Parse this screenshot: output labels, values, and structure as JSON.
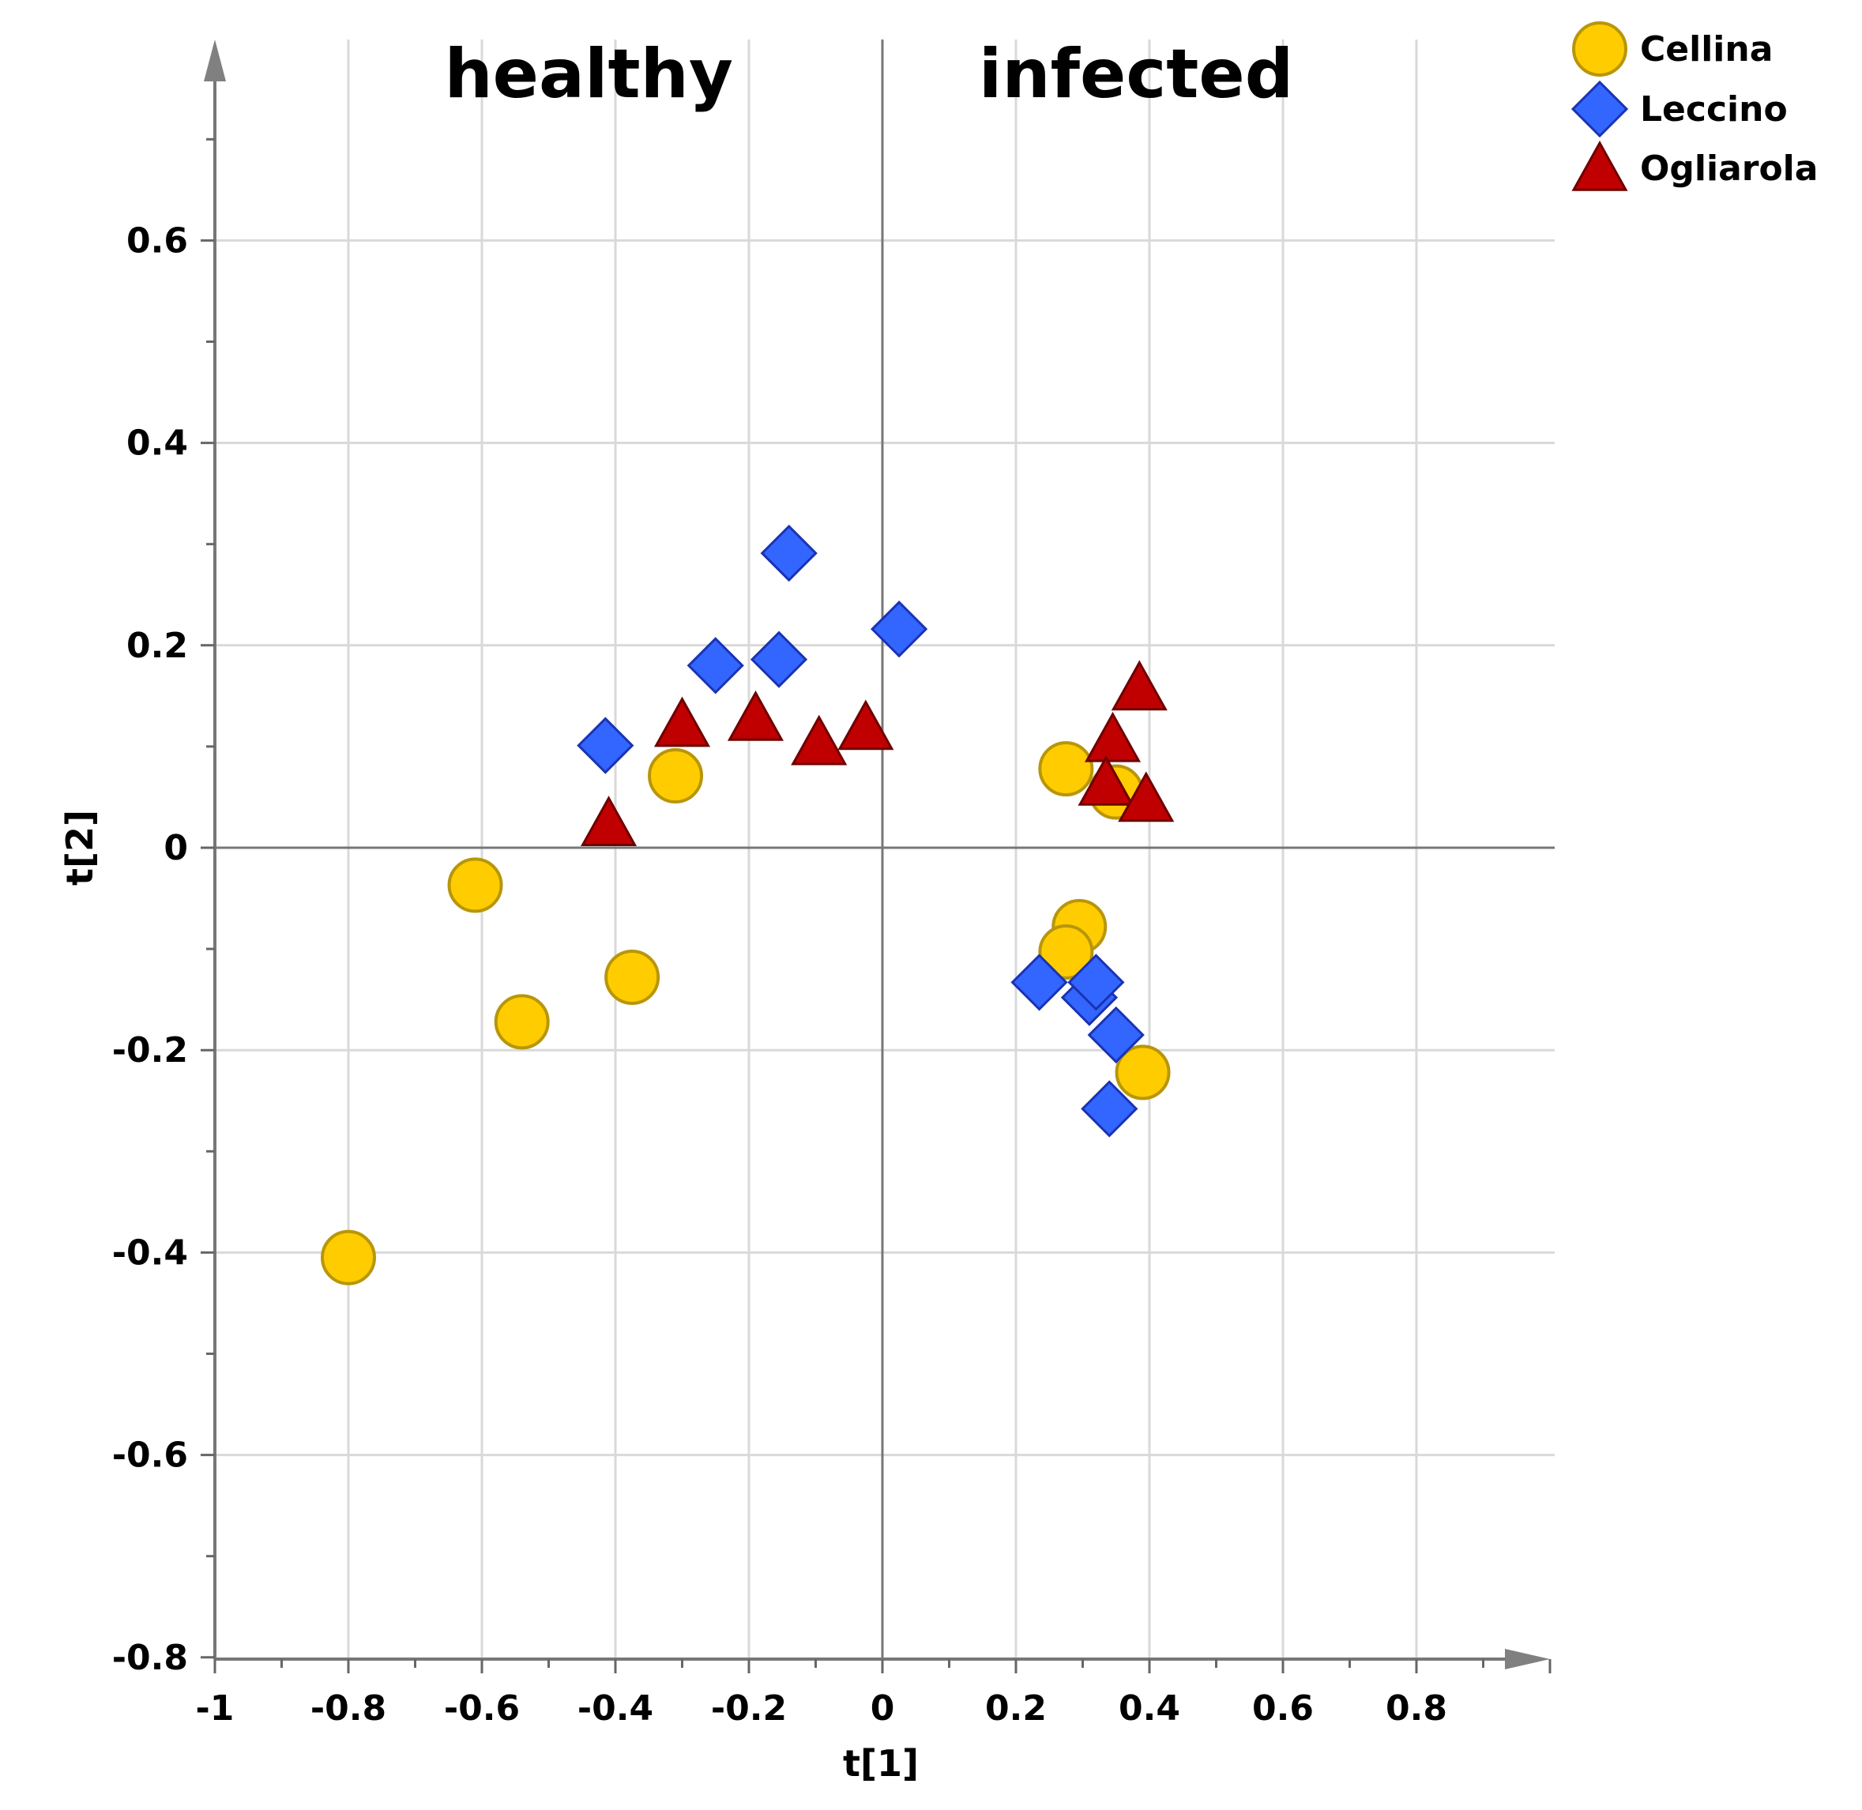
{
  "chart_data": {
    "type": "scatter",
    "title": "",
    "xlabel": "t[1]",
    "ylabel": "t[2]",
    "xlim": [
      -1,
      1
    ],
    "ylim": [
      -0.8,
      0.8
    ],
    "x_ticks": [
      -1,
      -0.8,
      -0.6,
      -0.4,
      -0.2,
      0,
      0.2,
      0.4,
      0.6,
      0.8
    ],
    "x_tick_labels": [
      "-1",
      "-0.8",
      "-0.6",
      "-0.4",
      "-0.2",
      "0",
      "0.2",
      "0.4",
      "0.6",
      "0.8"
    ],
    "y_ticks": [
      0.6,
      0.4,
      0.2,
      0,
      -0.2,
      -0.4,
      -0.6,
      -0.8
    ],
    "y_tick_labels": [
      "0.6",
      "0.4",
      "0.2",
      "0",
      "-0.2",
      "-0.4",
      "-0.6",
      "-0.8"
    ],
    "grid": true,
    "legend_position": "top-right",
    "annotations": [
      {
        "text": "healthy",
        "x": -0.44,
        "y": 0.765
      },
      {
        "text": "infected",
        "x": 0.38,
        "y": 0.765
      }
    ],
    "series": [
      {
        "name": "Cellina",
        "marker": "circle",
        "color": "#FFCC00",
        "stroke": "#B8960A",
        "points": [
          [
            -0.8,
            -0.405
          ],
          [
            -0.61,
            -0.037
          ],
          [
            -0.54,
            -0.172
          ],
          [
            -0.375,
            -0.128
          ],
          [
            -0.31,
            0.071
          ],
          [
            0.35,
            0.055
          ],
          [
            0.275,
            0.078
          ],
          [
            0.295,
            -0.078
          ],
          [
            0.275,
            -0.103
          ],
          [
            0.39,
            -0.222
          ]
        ]
      },
      {
        "name": "Leccino",
        "marker": "diamond",
        "color": "#3366FF",
        "stroke": "#1A33B3",
        "points": [
          [
            -0.415,
            0.101
          ],
          [
            -0.25,
            0.18
          ],
          [
            -0.155,
            0.186
          ],
          [
            -0.14,
            0.291
          ],
          [
            0.025,
            0.216
          ],
          [
            0.235,
            -0.133
          ],
          [
            0.31,
            -0.148
          ],
          [
            0.32,
            -0.133
          ],
          [
            0.35,
            -0.185
          ],
          [
            0.34,
            -0.258
          ]
        ]
      },
      {
        "name": "Ogliarola",
        "marker": "triangle",
        "color": "#C00000",
        "stroke": "#6E0000",
        "points": [
          [
            -0.41,
            0.024
          ],
          [
            -0.3,
            0.122
          ],
          [
            -0.19,
            0.128
          ],
          [
            -0.095,
            0.104
          ],
          [
            -0.025,
            0.119
          ],
          [
            0.385,
            0.158
          ],
          [
            0.345,
            0.107
          ],
          [
            0.335,
            0.064
          ],
          [
            0.395,
            0.048
          ]
        ]
      }
    ]
  }
}
